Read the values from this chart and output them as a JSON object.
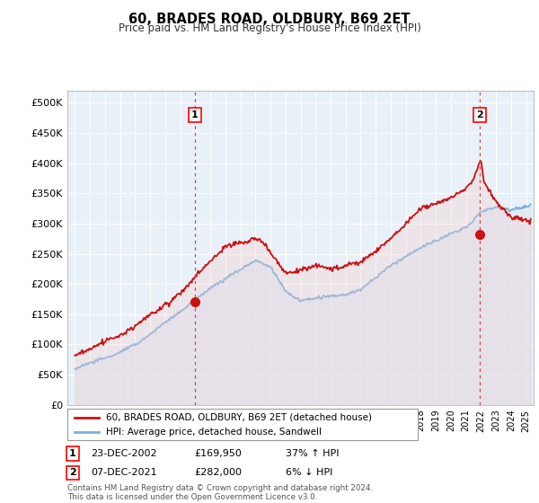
{
  "title": "60, BRADES ROAD, OLDBURY, B69 2ET",
  "subtitle": "Price paid vs. HM Land Registry's House Price Index (HPI)",
  "ylabel_ticks": [
    "£0",
    "£50K",
    "£100K",
    "£150K",
    "£200K",
    "£250K",
    "£300K",
    "£350K",
    "£400K",
    "£450K",
    "£500K"
  ],
  "ytick_values": [
    0,
    50000,
    100000,
    150000,
    200000,
    250000,
    300000,
    350000,
    400000,
    450000,
    500000
  ],
  "ylim": [
    0,
    520000
  ],
  "xlim_start": 1994.5,
  "xlim_end": 2025.5,
  "marker1_x": 2002.98,
  "marker1_y": 169950,
  "marker1_label": "1",
  "marker2_x": 2021.92,
  "marker2_y": 282000,
  "marker2_label": "2",
  "transaction1_date": "23-DEC-2002",
  "transaction1_price": "£169,950",
  "transaction1_info": "37% ↑ HPI",
  "transaction2_date": "07-DEC-2021",
  "transaction2_price": "£282,000",
  "transaction2_info": "6% ↓ HPI",
  "legend_line1": "60, BRADES ROAD, OLDBURY, B69 2ET (detached house)",
  "legend_line2": "HPI: Average price, detached house, Sandwell",
  "footer": "Contains HM Land Registry data © Crown copyright and database right 2024.\nThis data is licensed under the Open Government Licence v3.0.",
  "hpi_color": "#7ab0dc",
  "hpi_fill_color": "#ddeaf6",
  "price_color": "#cc1111",
  "vline_color": "#dd4444",
  "background_color": "#ffffff",
  "plot_bg_color": "#e8f0f8",
  "grid_color": "#ffffff"
}
